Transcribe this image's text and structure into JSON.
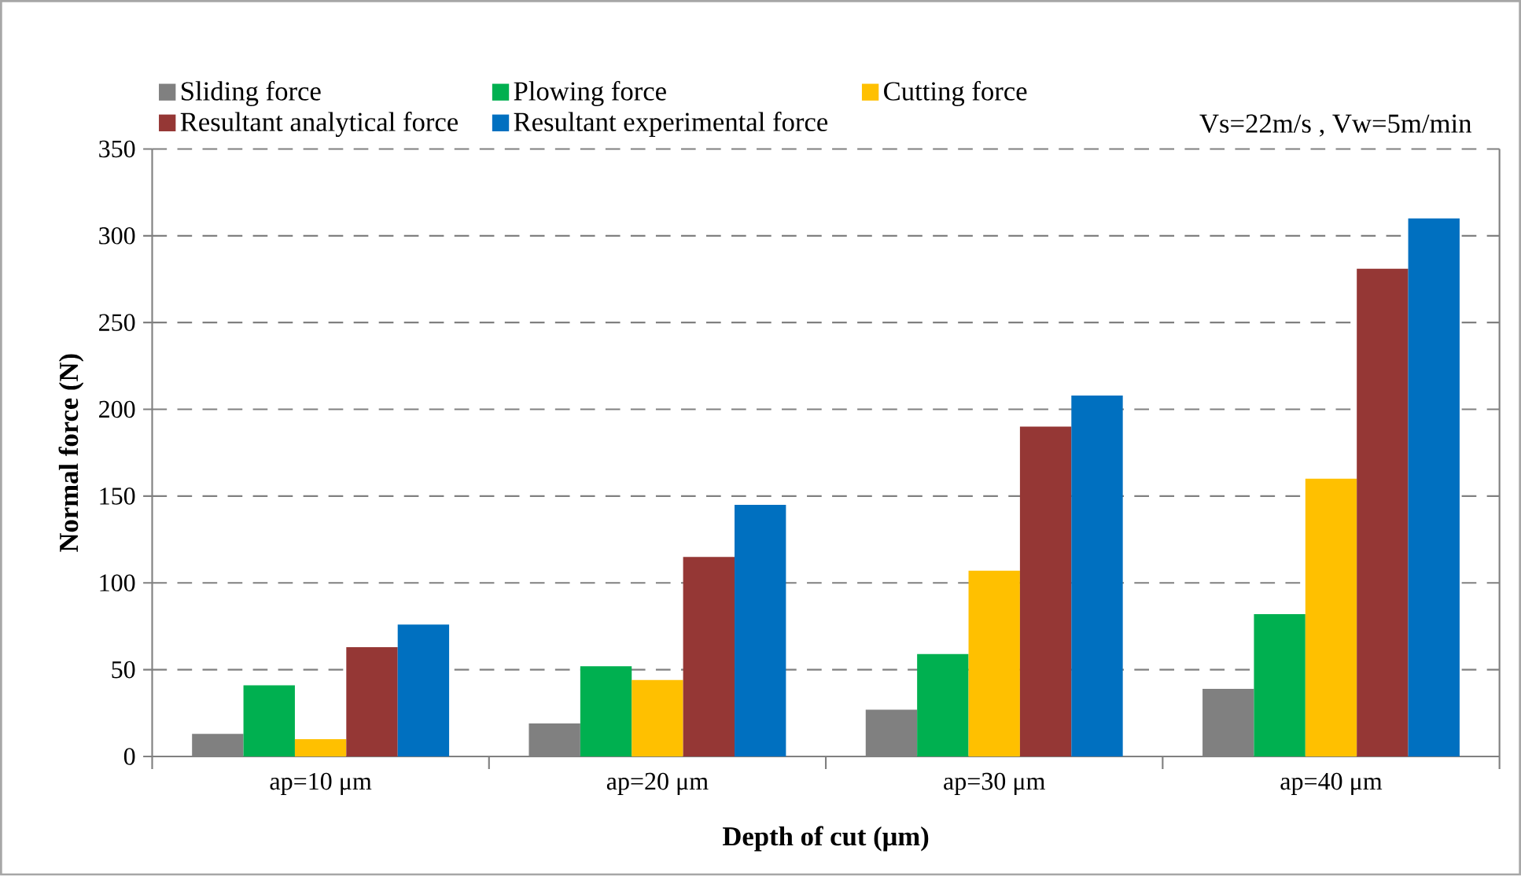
{
  "chart_data": {
    "type": "bar",
    "xlabel": "Depth of cut (μm)",
    "ylabel": "Normal force (N)",
    "categories": [
      "ap=10 μm",
      "ap=20 μm",
      "ap=30 μm",
      "ap=40 μm"
    ],
    "series": [
      {
        "name": "Sliding force",
        "color": "#808080",
        "values": [
          13,
          19,
          27,
          39
        ]
      },
      {
        "name": "Plowing force",
        "color": "#00b050",
        "values": [
          41,
          52,
          59,
          82
        ]
      },
      {
        "name": "Cutting force",
        "color": "#ffc000",
        "values": [
          10,
          44,
          107,
          160
        ]
      },
      {
        "name": "Resultant analytical force",
        "color": "#953735",
        "values": [
          63,
          115,
          190,
          281
        ]
      },
      {
        "name": "Resultant experimental force",
        "color": "#0070c0",
        "values": [
          76,
          145,
          208,
          310
        ]
      }
    ],
    "ylim": [
      0,
      350
    ],
    "yticks": [
      0,
      50,
      100,
      150,
      200,
      250,
      300,
      350
    ],
    "grid": "y",
    "legend": "top",
    "annotations": [
      "Vs=22m/s , Vw=5m/min"
    ]
  }
}
